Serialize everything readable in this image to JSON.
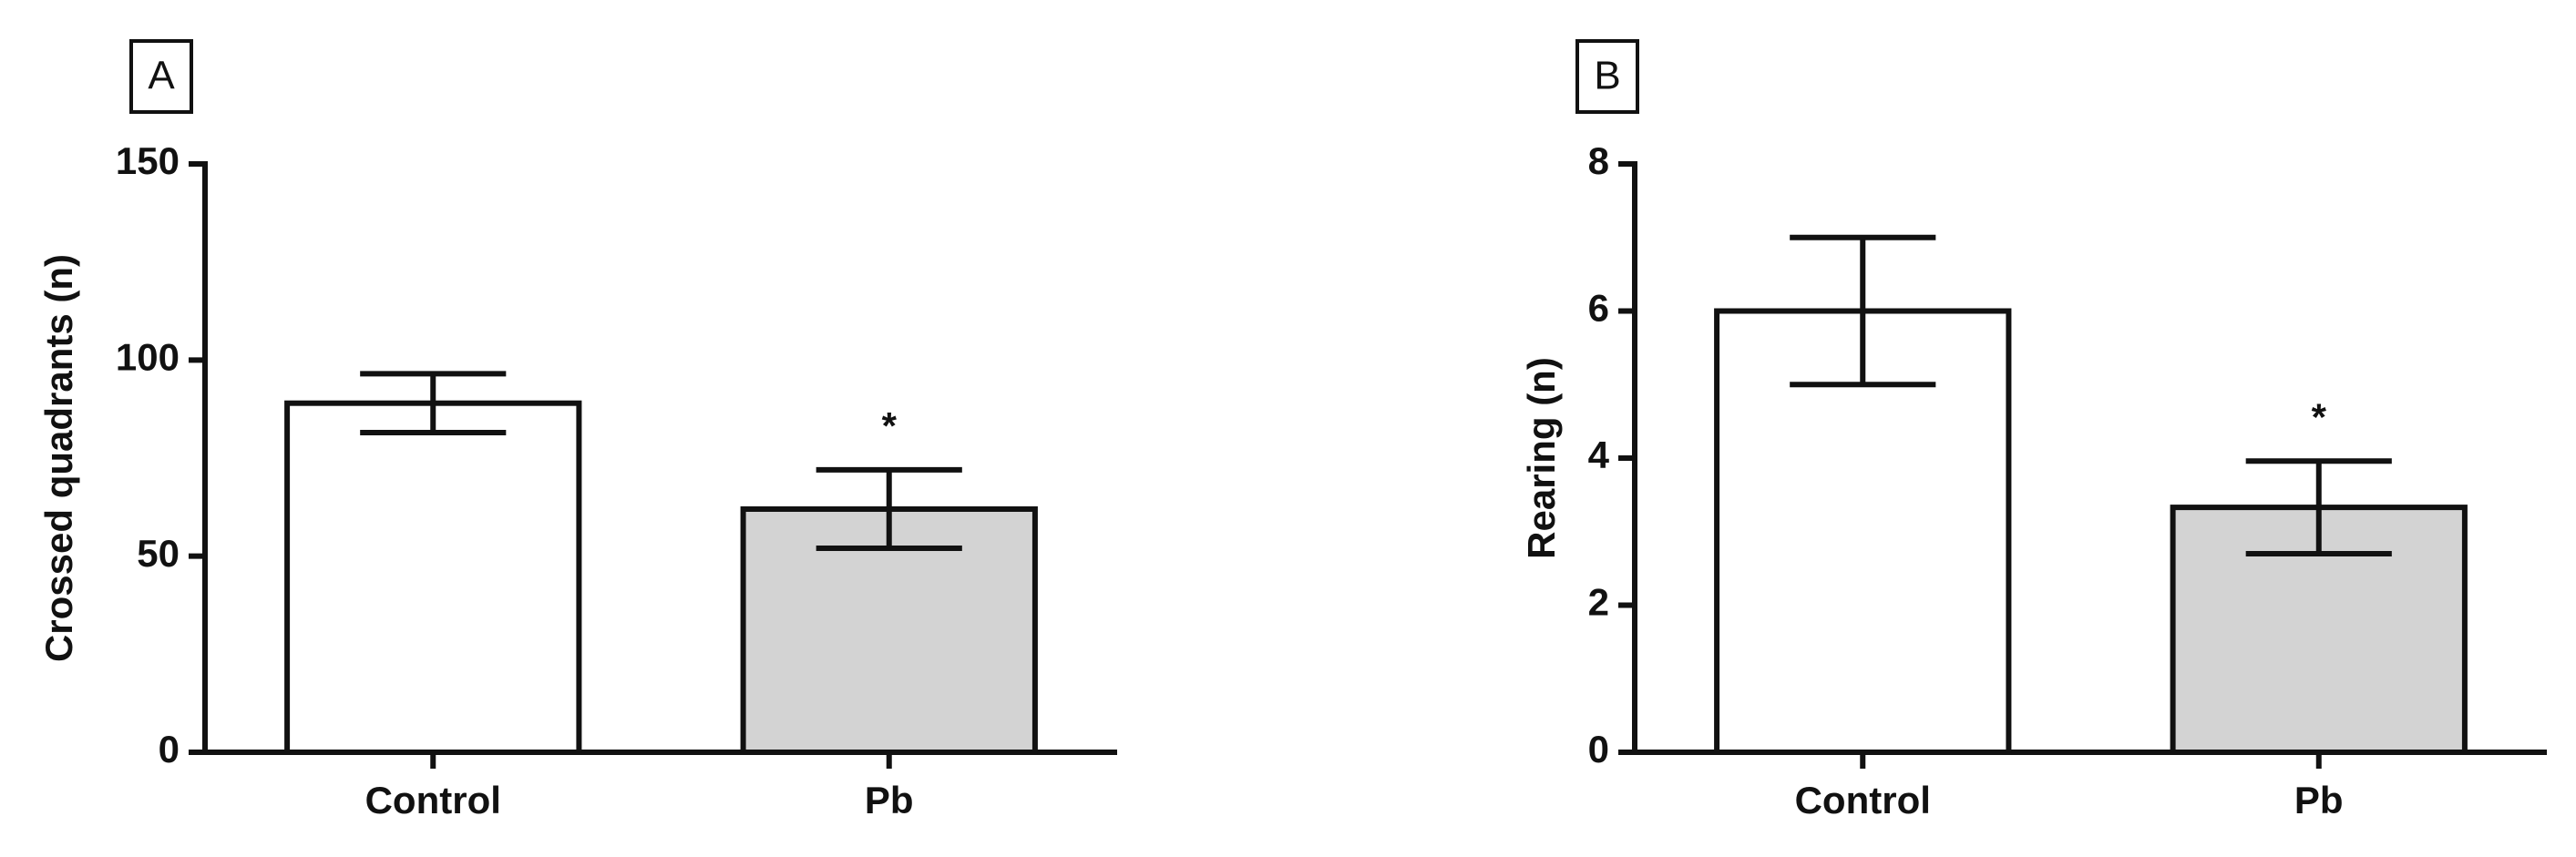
{
  "chart_data": [
    {
      "type": "bar",
      "panel_label": "A",
      "ylabel": "Crossed quadrants (n)",
      "categories": [
        "Control",
        "Pb"
      ],
      "values": [
        89,
        62
      ],
      "errors": [
        7.5,
        10
      ],
      "colors": [
        "#ffffff",
        "#d3d3d3"
      ],
      "ylim": [
        0,
        150
      ],
      "yticks": [
        0,
        50,
        100,
        150
      ],
      "annotations": [
        {
          "text": "*",
          "category": "Pb"
        }
      ]
    },
    {
      "type": "bar",
      "panel_label": "B",
      "ylabel": "Rearing (n)",
      "categories": [
        "Control",
        "Pb"
      ],
      "values": [
        6,
        3.33
      ],
      "errors": [
        1,
        0.63
      ],
      "colors": [
        "#ffffff",
        "#d3d3d3"
      ],
      "ylim": [
        0,
        8
      ],
      "yticks": [
        0,
        2,
        4,
        6,
        8
      ],
      "annotations": [
        {
          "text": "*",
          "category": "Pb"
        }
      ]
    }
  ]
}
